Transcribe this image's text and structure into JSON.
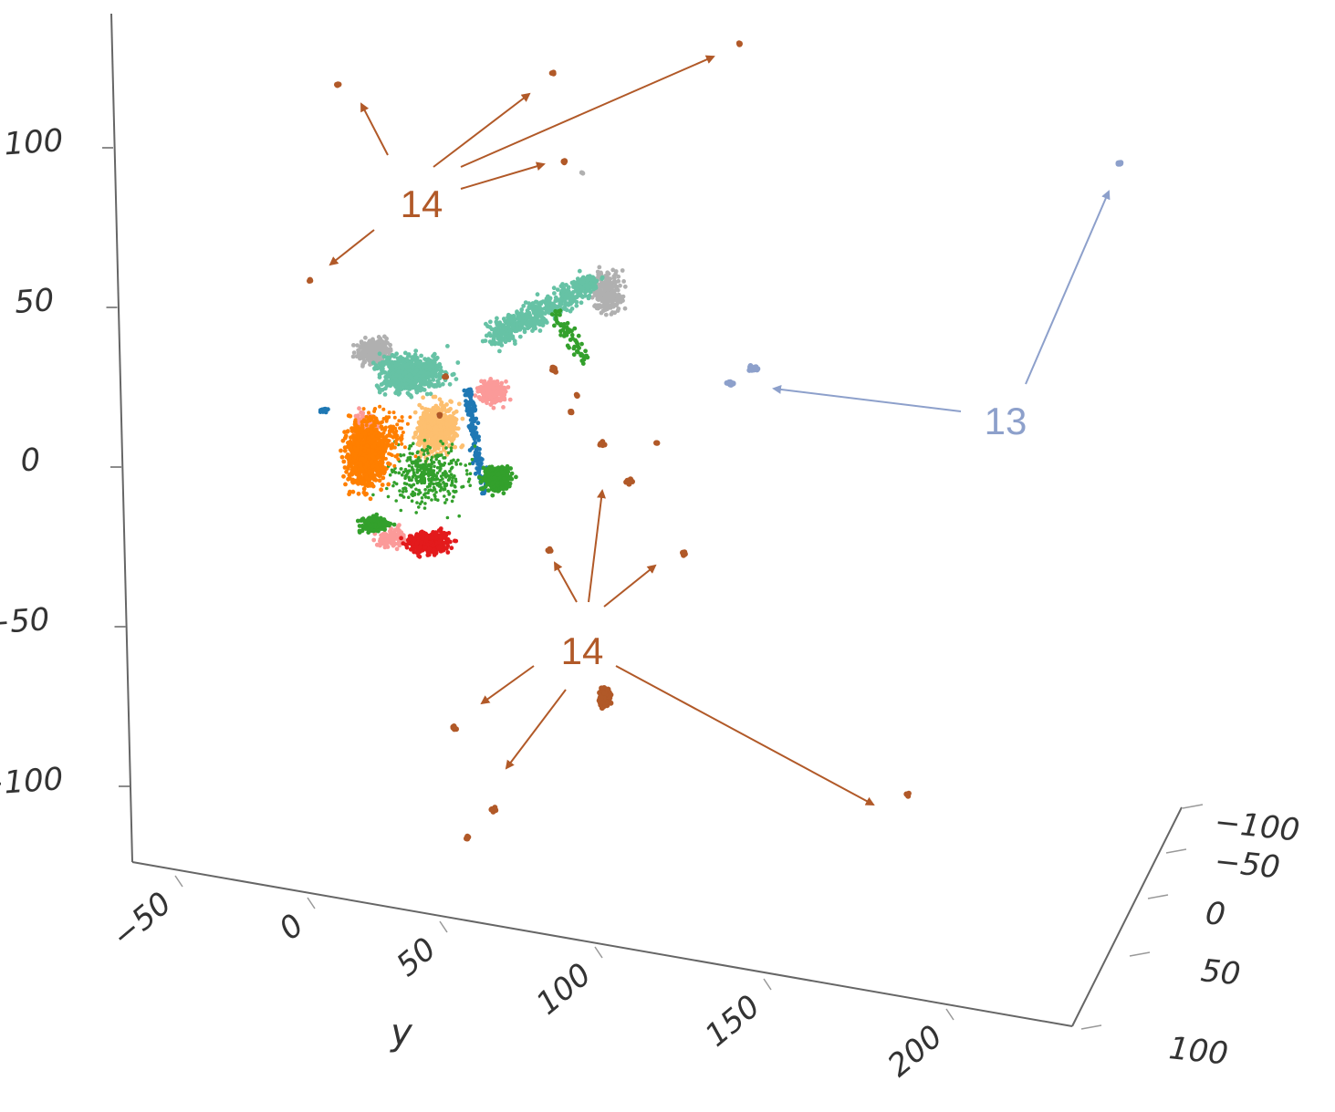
{
  "chart_data": {
    "type": "scatter",
    "title": "",
    "axes": {
      "vertical": {
        "label": "",
        "ticks": [
          "100",
          "50",
          "0",
          "−50",
          "−100"
        ]
      },
      "y": {
        "label": "y",
        "ticks": [
          "−50",
          "0",
          "50",
          "100",
          "150",
          "200"
        ]
      },
      "depth": {
        "label": "",
        "ticks": [
          "−100",
          "−50",
          "0",
          "50",
          "100"
        ]
      }
    },
    "grid": false,
    "legend": "none",
    "clusters": [
      {
        "color": "#b0b0b0",
        "description": "gray"
      },
      {
        "color": "#66c2a5",
        "description": "teal"
      },
      {
        "color": "#fb9a99",
        "description": "pink"
      },
      {
        "color": "#fdbf6f",
        "description": "light orange"
      },
      {
        "color": "#1f78b4",
        "description": "blue"
      },
      {
        "color": "#ff7f00",
        "description": "orange"
      },
      {
        "color": "#33a02c",
        "description": "green"
      },
      {
        "color": "#e31a1c",
        "description": "red"
      },
      {
        "color": "#8da0cb",
        "description": "lavender"
      },
      {
        "color": "#b15928",
        "description": "brown"
      }
    ],
    "annotations": [
      {
        "text": "14",
        "color": "#b15928"
      },
      {
        "text": "13",
        "color": "#8da0cb"
      },
      {
        "text": "14",
        "color": "#b15928"
      }
    ]
  }
}
